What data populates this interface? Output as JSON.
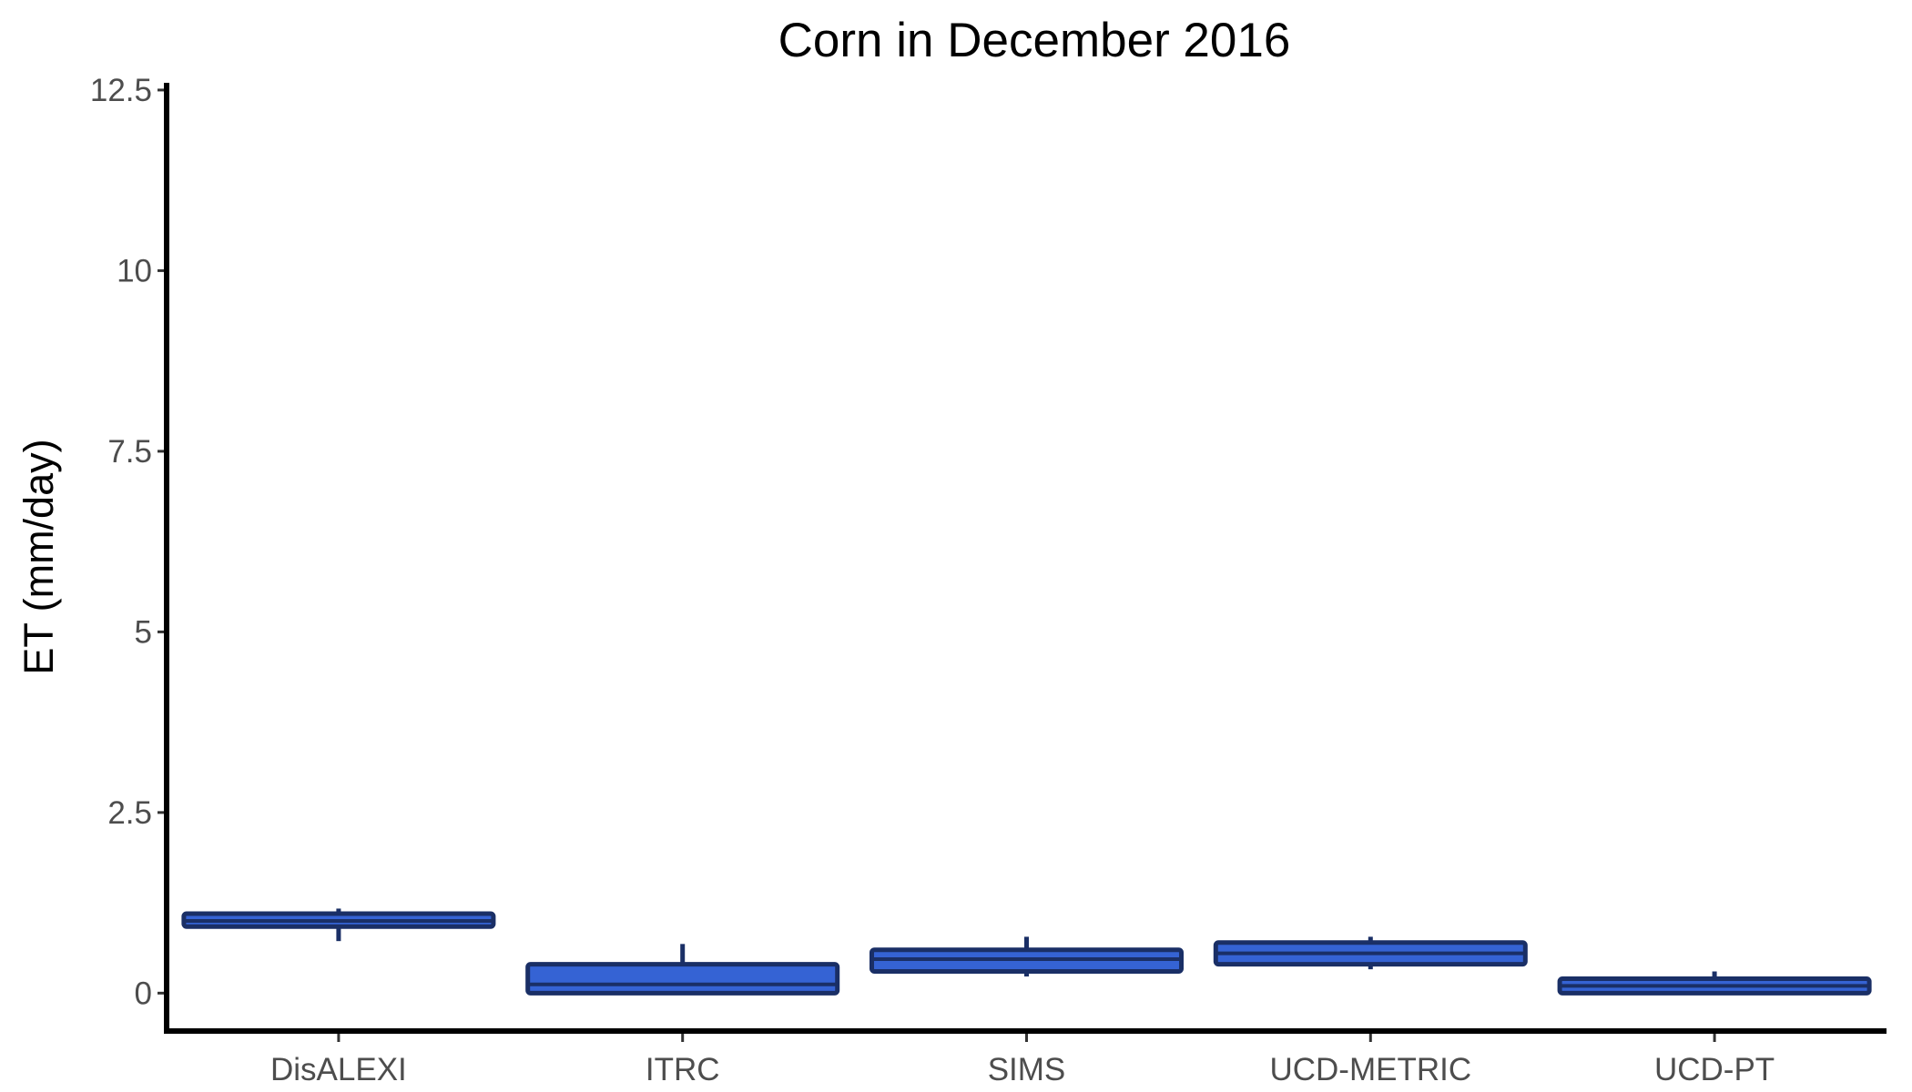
{
  "chart_data": {
    "type": "box",
    "title": "Corn in December 2016",
    "xlabel": "",
    "ylabel": "ET (mm/day)",
    "ylim": [
      -0.55,
      12.6
    ],
    "yticks": [
      0,
      2.5,
      5,
      7.5,
      10,
      12.5
    ],
    "ytick_labels": [
      "0",
      "2.5",
      "5",
      "7.5",
      "10",
      "12.5"
    ],
    "grid": false,
    "legend": "none",
    "categories": [
      "DisALEXI",
      "ITRC",
      "SIMS",
      "UCD-METRIC",
      "UCD-PT"
    ],
    "series": [
      {
        "boxes": [
          {
            "category": "DisALEXI",
            "whisker_low": 0.72,
            "q1": 0.92,
            "median": 1.0,
            "q3": 1.1,
            "whisker_high": 1.17
          },
          {
            "category": "ITRC",
            "whisker_low": 0.0,
            "q1": 0.0,
            "median": 0.12,
            "q3": 0.4,
            "whisker_high": 0.68
          },
          {
            "category": "SIMS",
            "whisker_low": 0.23,
            "q1": 0.3,
            "median": 0.47,
            "q3": 0.6,
            "whisker_high": 0.78
          },
          {
            "category": "UCD-METRIC",
            "whisker_low": 0.33,
            "q1": 0.4,
            "median": 0.55,
            "q3": 0.7,
            "whisker_high": 0.78
          },
          {
            "category": "UCD-PT",
            "whisker_low": 0.0,
            "q1": 0.0,
            "median": 0.1,
            "q3": 0.2,
            "whisker_high": 0.3
          }
        ]
      }
    ],
    "colors": {
      "box_fill": "#3563d4",
      "box_edge": "#1a2f66",
      "axis": "#000000"
    }
  }
}
